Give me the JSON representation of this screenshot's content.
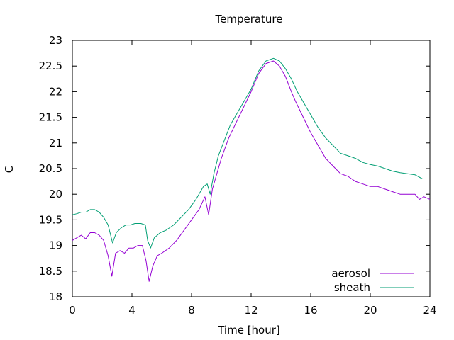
{
  "chart_data": {
    "type": "line",
    "title": "Temperature",
    "xlabel": "Time [hour]",
    "ylabel": "C",
    "xlim": [
      0,
      24
    ],
    "ylim": [
      18,
      23
    ],
    "xticks": [
      0,
      4,
      8,
      12,
      16,
      20,
      24
    ],
    "yticks": [
      18,
      18.5,
      19,
      19.5,
      20,
      20.5,
      21,
      21.5,
      22,
      22.5,
      23
    ],
    "grid": false,
    "legend_position": "bottom-right",
    "series": [
      {
        "name": "aerosol",
        "color": "#9400d3",
        "points": [
          [
            0,
            19.1
          ],
          [
            0.3,
            19.15
          ],
          [
            0.6,
            19.2
          ],
          [
            0.9,
            19.13
          ],
          [
            1.2,
            19.25
          ],
          [
            1.5,
            19.25
          ],
          [
            1.8,
            19.2
          ],
          [
            2.1,
            19.1
          ],
          [
            2.4,
            18.8
          ],
          [
            2.65,
            18.4
          ],
          [
            2.9,
            18.85
          ],
          [
            3.2,
            18.9
          ],
          [
            3.5,
            18.85
          ],
          [
            3.8,
            18.95
          ],
          [
            4.1,
            18.95
          ],
          [
            4.4,
            19.0
          ],
          [
            4.7,
            19.0
          ],
          [
            4.95,
            18.7
          ],
          [
            5.15,
            18.3
          ],
          [
            5.4,
            18.6
          ],
          [
            5.7,
            18.8
          ],
          [
            6.0,
            18.85
          ],
          [
            6.5,
            18.95
          ],
          [
            7.0,
            19.1
          ],
          [
            7.5,
            19.3
          ],
          [
            8.0,
            19.5
          ],
          [
            8.5,
            19.7
          ],
          [
            8.9,
            19.95
          ],
          [
            9.15,
            19.6
          ],
          [
            9.4,
            20.1
          ],
          [
            9.7,
            20.4
          ],
          [
            10.0,
            20.7
          ],
          [
            10.5,
            21.1
          ],
          [
            11.0,
            21.4
          ],
          [
            11.5,
            21.7
          ],
          [
            12.0,
            22.0
          ],
          [
            12.5,
            22.35
          ],
          [
            13.0,
            22.55
          ],
          [
            13.5,
            22.6
          ],
          [
            13.9,
            22.5
          ],
          [
            14.3,
            22.3
          ],
          [
            14.7,
            22.0
          ],
          [
            15.0,
            21.8
          ],
          [
            15.5,
            21.5
          ],
          [
            16.0,
            21.2
          ],
          [
            16.5,
            20.95
          ],
          [
            17.0,
            20.7
          ],
          [
            17.5,
            20.55
          ],
          [
            18.0,
            20.4
          ],
          [
            18.5,
            20.35
          ],
          [
            19.0,
            20.25
          ],
          [
            19.5,
            20.2
          ],
          [
            20.0,
            20.15
          ],
          [
            20.5,
            20.15
          ],
          [
            21.0,
            20.1
          ],
          [
            21.5,
            20.05
          ],
          [
            22.0,
            20.0
          ],
          [
            22.5,
            20.0
          ],
          [
            23.0,
            20.0
          ],
          [
            23.3,
            19.9
          ],
          [
            23.6,
            19.95
          ],
          [
            24.0,
            19.9
          ]
        ]
      },
      {
        "name": "sheath",
        "color": "#009e73",
        "points": [
          [
            0,
            19.6
          ],
          [
            0.3,
            19.62
          ],
          [
            0.6,
            19.65
          ],
          [
            0.9,
            19.65
          ],
          [
            1.2,
            19.7
          ],
          [
            1.5,
            19.7
          ],
          [
            1.8,
            19.65
          ],
          [
            2.1,
            19.55
          ],
          [
            2.4,
            19.4
          ],
          [
            2.7,
            19.05
          ],
          [
            2.95,
            19.25
          ],
          [
            3.3,
            19.35
          ],
          [
            3.6,
            19.4
          ],
          [
            3.9,
            19.4
          ],
          [
            4.2,
            19.43
          ],
          [
            4.6,
            19.43
          ],
          [
            4.9,
            19.4
          ],
          [
            5.05,
            19.1
          ],
          [
            5.25,
            18.95
          ],
          [
            5.5,
            19.15
          ],
          [
            5.9,
            19.25
          ],
          [
            6.3,
            19.3
          ],
          [
            6.8,
            19.4
          ],
          [
            7.3,
            19.55
          ],
          [
            7.8,
            19.7
          ],
          [
            8.3,
            19.9
          ],
          [
            8.8,
            20.15
          ],
          [
            9.05,
            20.2
          ],
          [
            9.25,
            20.0
          ],
          [
            9.5,
            20.4
          ],
          [
            9.8,
            20.75
          ],
          [
            10.2,
            21.05
          ],
          [
            10.6,
            21.35
          ],
          [
            11.0,
            21.55
          ],
          [
            11.5,
            21.8
          ],
          [
            12.0,
            22.05
          ],
          [
            12.5,
            22.4
          ],
          [
            13.0,
            22.6
          ],
          [
            13.5,
            22.65
          ],
          [
            13.9,
            22.6
          ],
          [
            14.3,
            22.45
          ],
          [
            14.7,
            22.25
          ],
          [
            15.1,
            22.0
          ],
          [
            15.5,
            21.8
          ],
          [
            16.0,
            21.55
          ],
          [
            16.5,
            21.3
          ],
          [
            17.0,
            21.1
          ],
          [
            17.5,
            20.95
          ],
          [
            18.0,
            20.8
          ],
          [
            18.5,
            20.75
          ],
          [
            19.0,
            20.7
          ],
          [
            19.5,
            20.62
          ],
          [
            20.0,
            20.58
          ],
          [
            20.5,
            20.55
          ],
          [
            21.0,
            20.5
          ],
          [
            21.5,
            20.45
          ],
          [
            22.0,
            20.42
          ],
          [
            22.5,
            20.4
          ],
          [
            23.0,
            20.38
          ],
          [
            23.5,
            20.3
          ],
          [
            24.0,
            20.3
          ]
        ]
      }
    ]
  }
}
